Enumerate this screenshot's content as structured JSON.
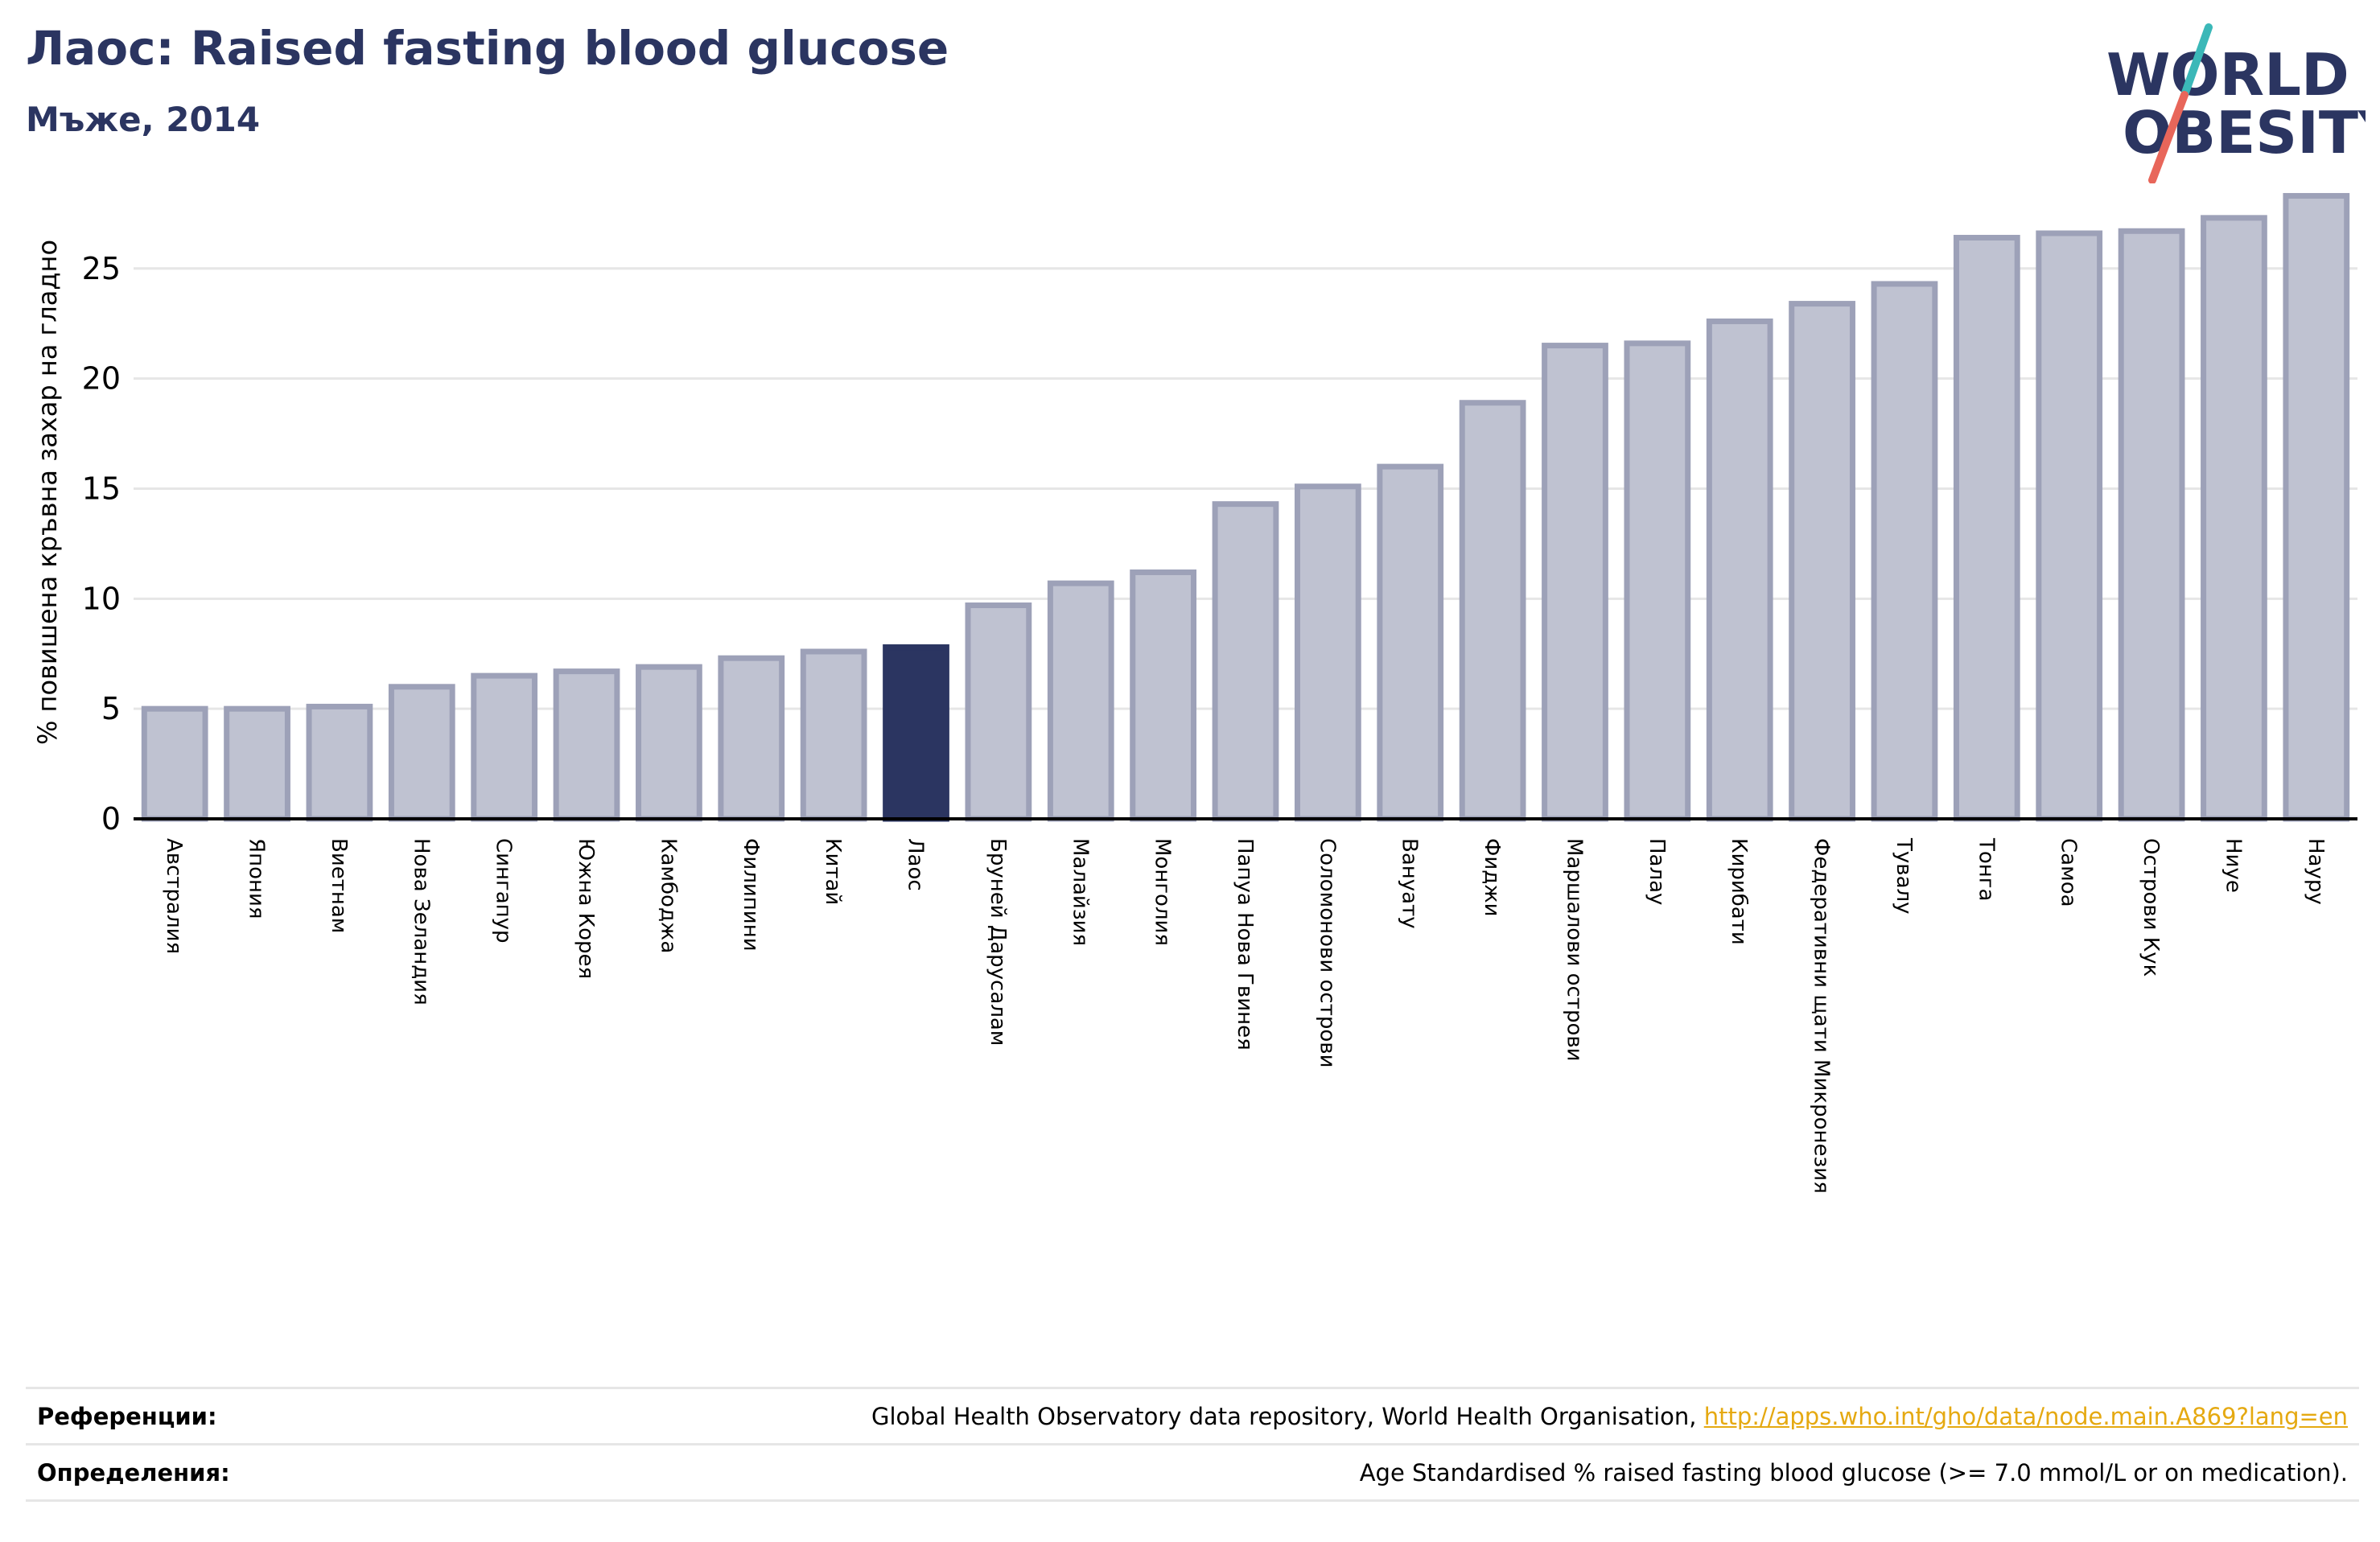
{
  "header": {
    "title": "Лаос: Raised fasting blood glucose",
    "subtitle": "Мъже, 2014"
  },
  "logo": {
    "line1": "WORLD",
    "line2": "OBESITY",
    "text_color": "#2b3561",
    "slash_color_top": "#3bb8b8",
    "slash_color_bottom": "#e8665a"
  },
  "colors": {
    "bar_fill": "#bfc2d1",
    "bar_stroke": "#9da1b8",
    "highlight_fill": "#2b3561",
    "grid": "#e6e6e6",
    "axis": "#000000"
  },
  "chart_data": {
    "type": "bar",
    "ylabel": "% повишена кръвна захар на гладно",
    "ylim": [
      0,
      28.5
    ],
    "yticks": [
      "0",
      "5",
      "10",
      "15",
      "20",
      "25"
    ],
    "grid": true,
    "highlight": "Лаос",
    "categories": [
      "Австралия",
      "Япония",
      "Виетнам",
      "Нова Зеландия",
      "Сингапур",
      "Южна Корея",
      "Камбоджа",
      "Филипини",
      "Китай",
      "Лаос",
      "Бруней Дарусалам",
      "Малайзия",
      "Монголия",
      "Папуа Нова Гвинея",
      "Соломонови острови",
      "Вануату",
      "Фиджи",
      "Маршалови острови",
      "Палау",
      "Кирибати",
      "Федеративни щати Микронезия",
      "Тувалу",
      "Тонга",
      "Самоа",
      "Острови Кук",
      "Ниуе",
      "Науру"
    ],
    "values": [
      5.0,
      5.0,
      5.1,
      6.0,
      6.5,
      6.7,
      6.9,
      7.3,
      7.6,
      7.8,
      9.7,
      10.7,
      11.2,
      14.3,
      15.1,
      16.0,
      18.9,
      21.5,
      21.6,
      22.6,
      23.4,
      24.3,
      26.4,
      26.6,
      26.7,
      27.3,
      28.3
    ]
  },
  "footer": {
    "references_label": "Референции:",
    "references_text": "Global Health Observatory data repository, World Health Organisation, ",
    "references_link": "http://apps.who.int/gho/data/node.main.A869?lang=en",
    "definitions_label": "Определения:",
    "definitions_text": "Age Standardised % raised fasting blood glucose (>= 7.0 mmol/L or on medication)."
  }
}
